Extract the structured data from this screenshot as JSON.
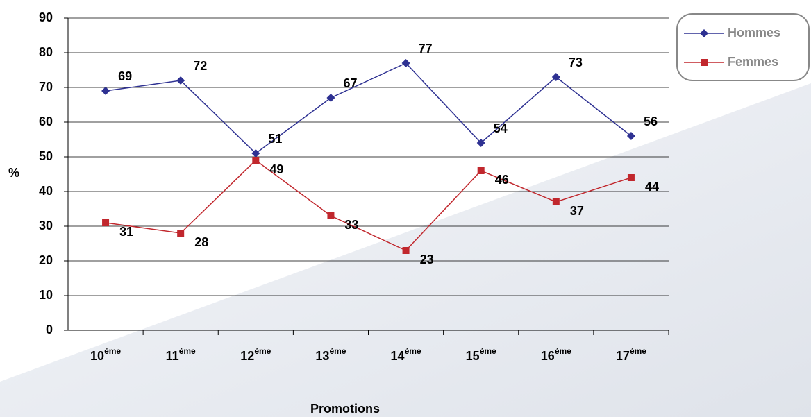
{
  "chart_data": {
    "type": "line",
    "x_label": "Promotions",
    "y_label": "%",
    "categories": [
      "10ème",
      "11ème",
      "12ème",
      "13ème",
      "14ème",
      "15ème",
      "16ème",
      "17ème"
    ],
    "series": [
      {
        "name": "Hommes",
        "color": "#2e3192",
        "marker": "diamond",
        "values": [
          69,
          72,
          51,
          67,
          77,
          54,
          73,
          56
        ]
      },
      {
        "name": "Femmes",
        "color": "#c1272d",
        "marker": "square",
        "values": [
          31,
          28,
          49,
          33,
          23,
          46,
          37,
          44
        ]
      }
    ],
    "ylim": [
      0,
      90
    ],
    "yticks": [
      0,
      10,
      20,
      30,
      40,
      50,
      60,
      70,
      80,
      90
    ],
    "grid": true,
    "legend": "top-right"
  }
}
